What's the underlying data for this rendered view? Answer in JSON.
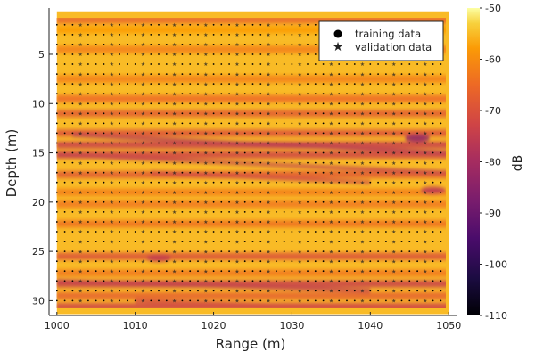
{
  "chart_data": {
    "type": "heatmap",
    "xlabel": "Range (m)",
    "ylabel": "Depth (m)",
    "xlim": [
      999,
      1051
    ],
    "ylim": [
      0.3,
      31.5
    ],
    "y_reversed": true,
    "x_ticks": [
      1000,
      1010,
      1020,
      1030,
      1040,
      1050
    ],
    "y_ticks": [
      5,
      10,
      15,
      20,
      25,
      30
    ],
    "colorbar": {
      "label": "dB",
      "min": -110,
      "max": -50,
      "ticks": [
        -50,
        -60,
        -70,
        -80,
        -90,
        -100,
        -110
      ],
      "colormap": "inferno"
    },
    "field_range": {
      "x": [
        1000,
        1050
      ],
      "y": [
        1,
        31
      ]
    },
    "horizontal_bands": [
      {
        "depth": 1.5,
        "level": -66
      },
      {
        "depth": 2.5,
        "level": -58
      },
      {
        "depth": 4.5,
        "level": -62
      },
      {
        "depth": 7.5,
        "level": -62
      },
      {
        "depth": 9.5,
        "level": -65
      },
      {
        "depth": 11.0,
        "level": -68
      },
      {
        "depth": 13.0,
        "level": -70
      },
      {
        "depth": 14.2,
        "level": -74
      },
      {
        "depth": 15.2,
        "level": -73
      },
      {
        "depth": 17.2,
        "level": -68
      },
      {
        "depth": 19.0,
        "level": -62
      },
      {
        "depth": 20.2,
        "level": -63
      },
      {
        "depth": 22.2,
        "level": -64
      },
      {
        "depth": 25.5,
        "level": -70
      },
      {
        "depth": 27.2,
        "level": -63
      },
      {
        "depth": 28.3,
        "level": -74
      },
      {
        "depth": 29.5,
        "level": -67
      },
      {
        "depth": 30.6,
        "level": -73
      }
    ],
    "slanted_streaks": [
      {
        "x1": 1002,
        "y1": 13.2,
        "x2": 1050,
        "y2": 15.0,
        "level": -78
      },
      {
        "x1": 1000,
        "y1": 15.2,
        "x2": 1050,
        "y2": 17.0,
        "level": -76
      },
      {
        "x1": 1012,
        "y1": 17.0,
        "x2": 1040,
        "y2": 18.0,
        "level": -74
      },
      {
        "x1": 1000,
        "y1": 28.0,
        "x2": 1040,
        "y2": 29.0,
        "level": -76
      },
      {
        "x1": 1010,
        "y1": 30.0,
        "x2": 1050,
        "y2": 31.0,
        "level": -72
      }
    ],
    "dark_spots": [
      {
        "x": 1046,
        "y": 13.5,
        "level": -84
      },
      {
        "x": 1048,
        "y": 18.8,
        "level": -76
      },
      {
        "x": 1013,
        "y": 25.7,
        "level": -75
      }
    ],
    "series": [
      {
        "name": "training data",
        "marker": "circle",
        "color": "#000000",
        "x_values": [
          1000,
          1001,
          1002,
          1004,
          1005,
          1006,
          1008,
          1009,
          1010,
          1012,
          1013,
          1014,
          1016,
          1017,
          1018,
          1020,
          1021,
          1022,
          1024,
          1025,
          1026,
          1028,
          1029,
          1030,
          1032,
          1033,
          1034,
          1036,
          1037,
          1038,
          1040,
          1041,
          1042,
          1044,
          1045,
          1046,
          1048,
          1049,
          1050
        ],
        "depth_start": 1,
        "depth_end": 31,
        "depth_step": 1
      },
      {
        "name": "validation data",
        "marker": "star",
        "color": "#3a8a4c",
        "x_values": [
          1003,
          1007,
          1011,
          1015,
          1019,
          1023,
          1027,
          1031,
          1035,
          1039,
          1043,
          1047
        ],
        "depth_start": 1,
        "depth_end": 31,
        "depth_step": 1
      }
    ],
    "legend_position": "top-right"
  }
}
